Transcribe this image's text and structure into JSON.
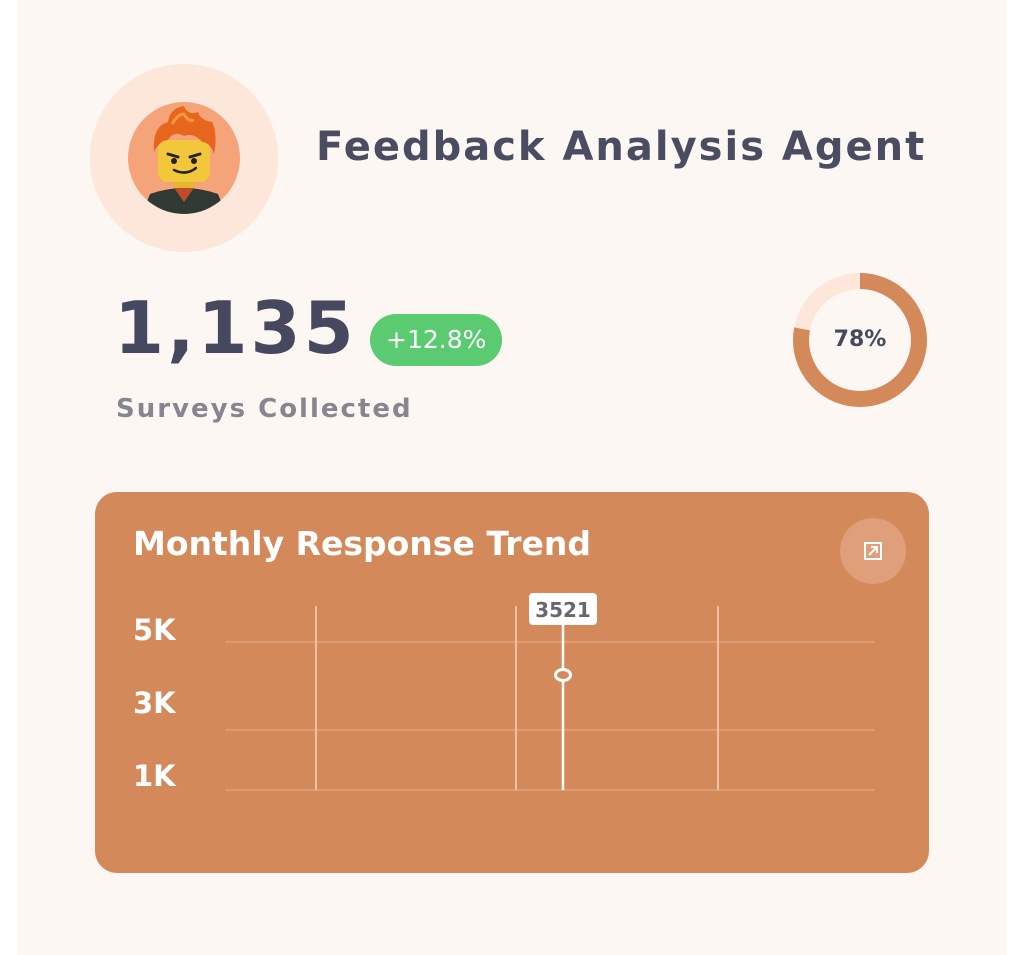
{
  "agent": {
    "name": "Feedback Analysis Agent",
    "avatar_icon": "lego-minifigure-avatar-icon"
  },
  "stats": {
    "surveys_count": "1,135",
    "surveys_label": "Surveys Collected",
    "delta": "+12.8%",
    "completion_label": "78%",
    "completion_fraction": 0.78
  },
  "colors": {
    "accent": "#d4895b",
    "positive": "#5acb70",
    "text_dark": "#45485e",
    "text_muted": "#85868f",
    "ring_track": "#fde6da"
  },
  "chart_card": {
    "title": "Monthly Response Trend",
    "expand_icon": "expand-arrow-icon"
  },
  "chart_data": {
    "type": "line",
    "title": "Monthly Response Trend",
    "xlabel": "",
    "ylabel": "",
    "y_ticks": [
      "5K",
      "3K",
      "1K"
    ],
    "y_tick_values": [
      5000,
      3000,
      1000
    ],
    "ylim": [
      0,
      6000
    ],
    "grid": true,
    "highlight": {
      "label": "3521",
      "value": 3521
    }
  }
}
